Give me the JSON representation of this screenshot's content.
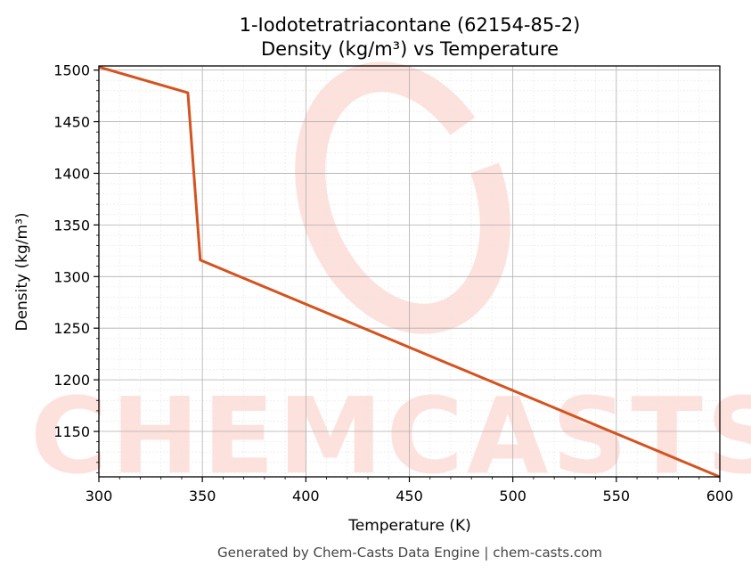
{
  "chart_data": {
    "type": "line",
    "title": "1-Iodotetratriacontane (62154-85-2)",
    "subtitle": "Density (kg/m³) vs Temperature",
    "xlabel": "Temperature (K)",
    "ylabel": "Density (kg/m³)",
    "xlim": [
      300,
      600
    ],
    "ylim": [
      1106,
      1504
    ],
    "x_ticks": [
      300,
      350,
      400,
      450,
      500,
      550,
      600
    ],
    "y_ticks": [
      1150,
      1200,
      1250,
      1300,
      1350,
      1400,
      1450,
      1500
    ],
    "grid": true,
    "minor_grid": true,
    "series": [
      {
        "color": "#d4531f",
        "x": [
          300,
          343,
          349,
          600
        ],
        "y": [
          1503,
          1478,
          1316,
          1106
        ]
      }
    ],
    "watermark": "CHEMCASTS",
    "watermark_color": "#fde1dc"
  },
  "footer": "Generated by Chem-Casts Data Engine | chem-casts.com"
}
